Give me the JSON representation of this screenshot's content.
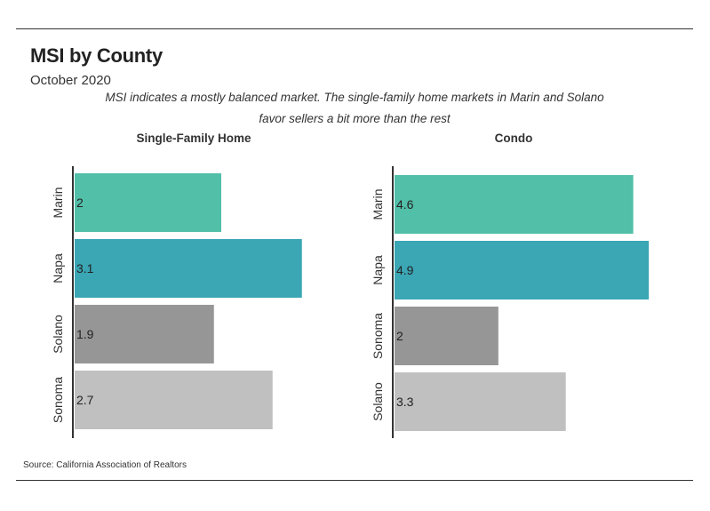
{
  "header": {
    "title": "MSI by County",
    "subtitle": "October 2020",
    "description": "MSI indicates a mostly balanced market. The single-family home markets in Marin and Solano favor sellers a bit more than the rest"
  },
  "footer": {
    "source": "Source:  California Association of Realtors"
  },
  "colors": {
    "teal_light": "#52bfa8",
    "teal_dark": "#3ba6b4",
    "gray_dark": "#969696",
    "gray_light": "#c0c0c0",
    "axis": "#333333"
  },
  "chart_data": [
    {
      "type": "bar",
      "orientation": "horizontal",
      "title": "Single-Family Home",
      "categories": [
        "Marin",
        "Napa",
        "Solano",
        "Sonoma"
      ],
      "values": [
        2,
        3.1,
        1.9,
        2.7
      ],
      "value_labels": [
        "2",
        "3.1",
        "1.9",
        "2.7"
      ],
      "colors": [
        "#52bfa8",
        "#3ba6b4",
        "#969696",
        "#c0c0c0"
      ],
      "xlim": [
        0,
        3.2
      ]
    },
    {
      "type": "bar",
      "orientation": "horizontal",
      "title": "Condo",
      "categories": [
        "Marin",
        "Napa",
        "Sonoma",
        "Solano"
      ],
      "values": [
        4.6,
        4.9,
        2,
        3.3
      ],
      "value_labels": [
        "4.6",
        "4.9",
        "2",
        "3.3"
      ],
      "colors": [
        "#52bfa8",
        "#3ba6b4",
        "#969696",
        "#c0c0c0"
      ],
      "xlim": [
        0,
        5.0
      ]
    }
  ]
}
